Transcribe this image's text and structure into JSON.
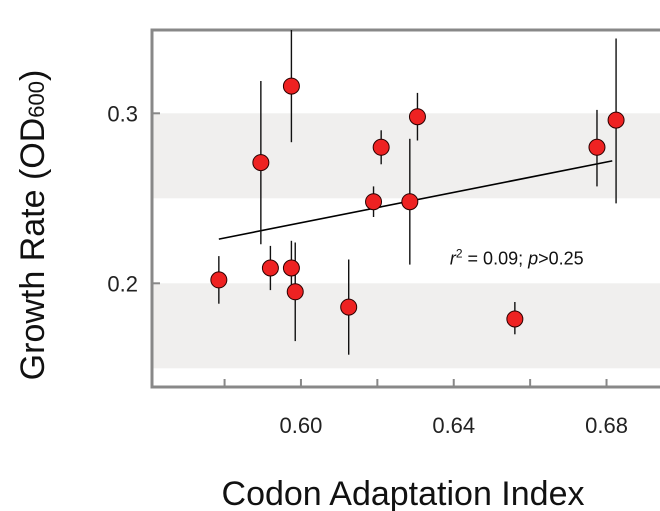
{
  "chart_data": {
    "type": "scatter",
    "xlabel": "Codon Adaptation Index",
    "ylabel_main": "Growth Rate (OD",
    "ylabel_sub": "600",
    "ylabel_close": ")",
    "xlim": [
      0.561,
      0.694
    ],
    "ylim": [
      0.139,
      0.349
    ],
    "xticks": [
      0.58,
      0.6,
      0.62,
      0.64,
      0.66,
      0.68
    ],
    "xtick_labels": [
      "0.60",
      "0.64",
      "0.68"
    ],
    "xtick_label_values": [
      0.6,
      0.64,
      0.68
    ],
    "yticks": [
      0.2,
      0.3
    ],
    "ytick_labels": [
      "0.2",
      "0.3"
    ],
    "bands": [
      [
        0.15,
        0.2
      ],
      [
        0.25,
        0.3
      ]
    ],
    "band_color": "#f0efee",
    "frame_color": "#888888",
    "point_color": "#ee2222",
    "points": [
      {
        "x": 0.5785,
        "y": 0.202,
        "ylo": 0.188,
        "yhi": 0.216
      },
      {
        "x": 0.5895,
        "y": 0.271,
        "ylo": 0.223,
        "yhi": 0.319
      },
      {
        "x": 0.592,
        "y": 0.209,
        "ylo": 0.196,
        "yhi": 0.222
      },
      {
        "x": 0.5975,
        "y": 0.316,
        "ylo": 0.283,
        "yhi": 0.349
      },
      {
        "x": 0.5975,
        "y": 0.209,
        "ylo": 0.196,
        "yhi": 0.225
      },
      {
        "x": 0.5985,
        "y": 0.195,
        "ylo": 0.166,
        "yhi": 0.224
      },
      {
        "x": 0.6125,
        "y": 0.186,
        "ylo": 0.158,
        "yhi": 0.214
      },
      {
        "x": 0.619,
        "y": 0.248,
        "ylo": 0.239,
        "yhi": 0.257
      },
      {
        "x": 0.621,
        "y": 0.28,
        "ylo": 0.27,
        "yhi": 0.29
      },
      {
        "x": 0.6285,
        "y": 0.248,
        "ylo": 0.211,
        "yhi": 0.285
      },
      {
        "x": 0.6305,
        "y": 0.298,
        "ylo": 0.284,
        "yhi": 0.312
      },
      {
        "x": 0.656,
        "y": 0.179,
        "ylo": 0.17,
        "yhi": 0.189
      },
      {
        "x": 0.6775,
        "y": 0.28,
        "ylo": 0.257,
        "yhi": 0.302
      },
      {
        "x": 0.6825,
        "y": 0.296,
        "ylo": 0.247,
        "yhi": 0.344
      }
    ],
    "trendline": {
      "x": [
        0.5785,
        0.6815
      ],
      "y": [
        0.226,
        0.272
      ]
    },
    "annotation": {
      "r": "r",
      "sup": "2",
      "eq": " = 0.09; ",
      "p": "p",
      "rest": ">0.25",
      "x": 0.6565,
      "y": 0.211
    },
    "grid": false
  }
}
